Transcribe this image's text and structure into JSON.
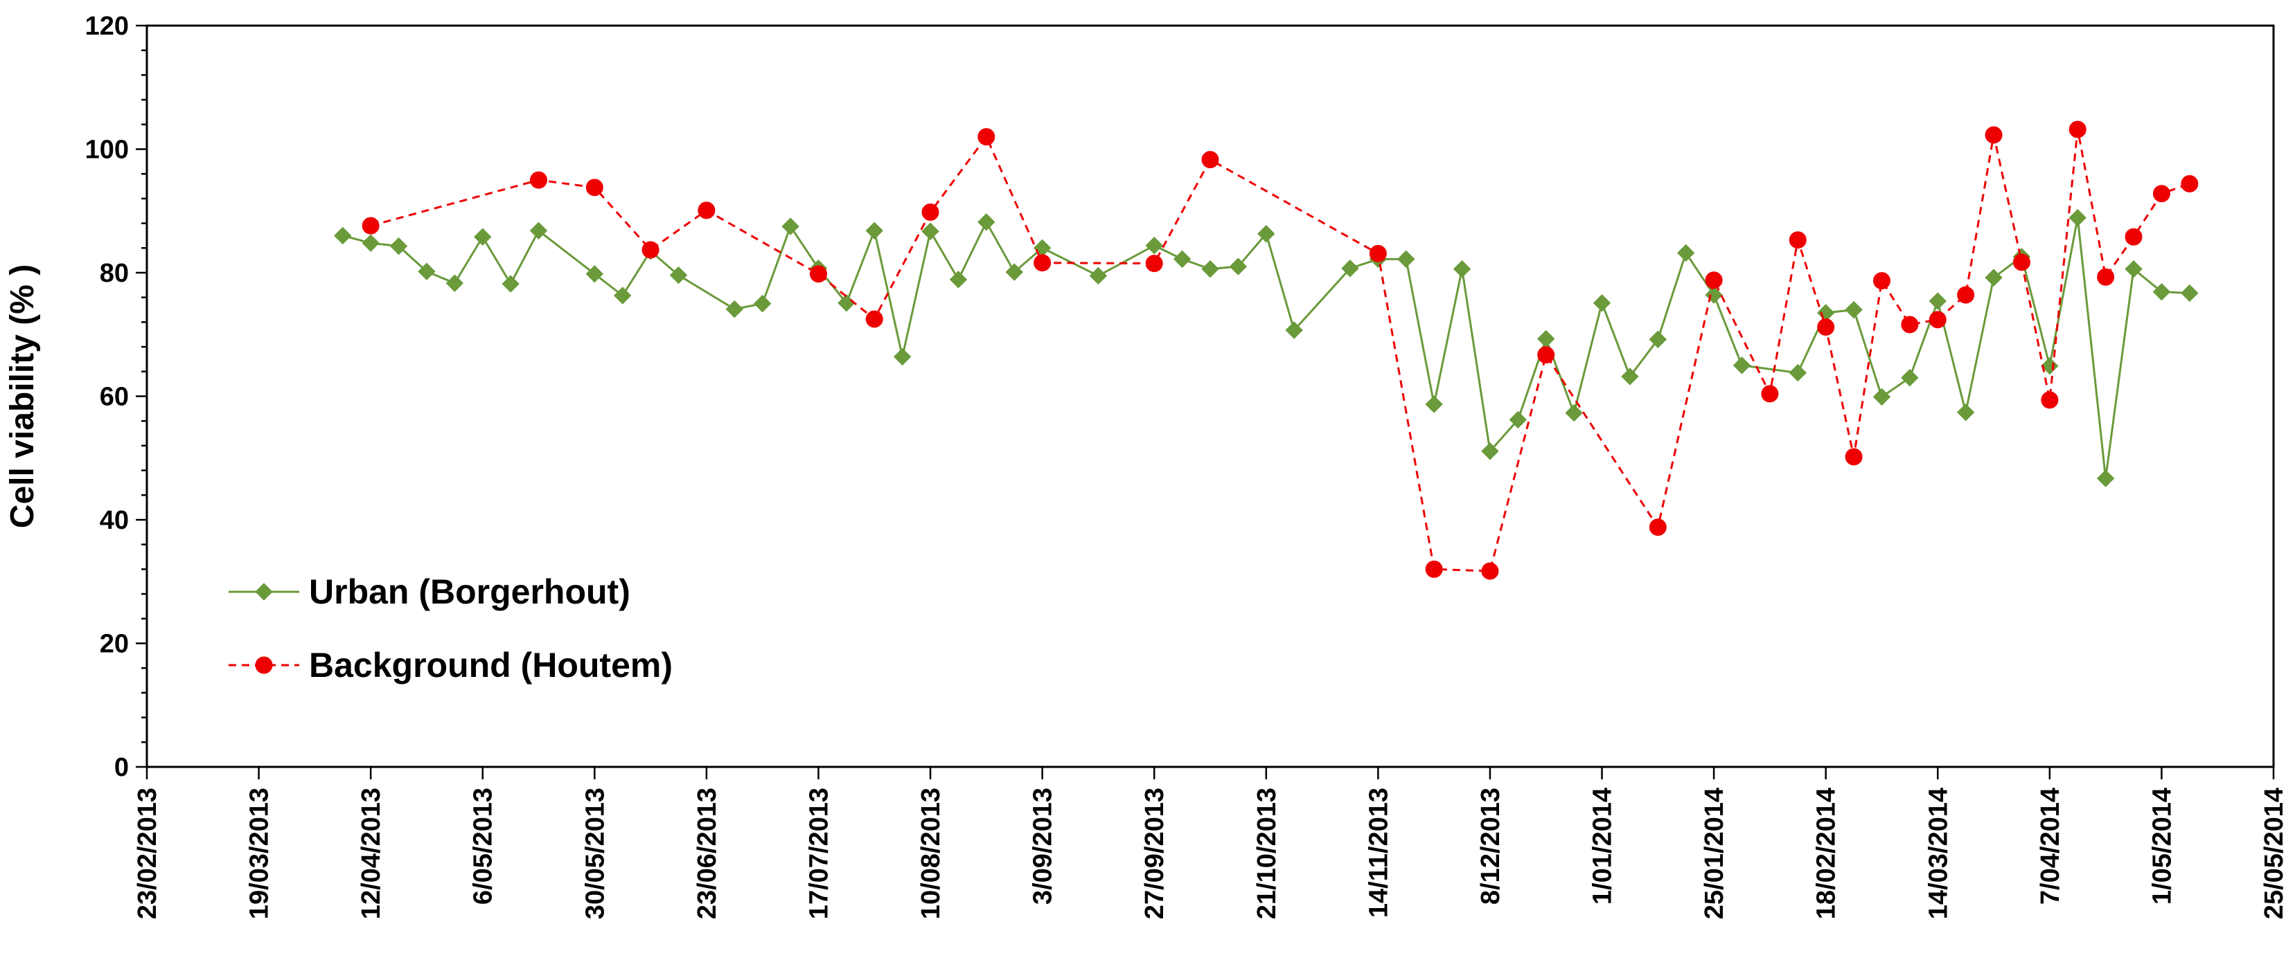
{
  "chart_data": {
    "type": "line",
    "title": "",
    "xlabel": "",
    "ylabel": "Cell viability (% )",
    "ylim": [
      0,
      120
    ],
    "y_ticks": [
      "0",
      "20",
      "40",
      "60",
      "80",
      "100",
      "120"
    ],
    "x_range": [
      "2013-02-23",
      "2014-05-25"
    ],
    "x_tick_dates": [
      "2013-02-23",
      "2013-03-19",
      "2013-04-12",
      "2013-05-06",
      "2013-05-30",
      "2013-06-23",
      "2013-07-17",
      "2013-08-10",
      "2013-09-03",
      "2013-09-27",
      "2013-10-21",
      "2013-11-14",
      "2013-12-08",
      "2014-01-01",
      "2014-01-25",
      "2014-02-18",
      "2014-03-14",
      "2014-04-07",
      "2014-05-01",
      "2014-05-25"
    ],
    "x_tick_labels": [
      "23/02/2013",
      "19/03/2013",
      "12/04/2013",
      "6/05/2013",
      "30/05/2013",
      "23/06/2013",
      "17/07/2013",
      "10/08/2013",
      "3/09/2013",
      "27/09/2013",
      "21/10/2013",
      "14/11/2013",
      "8/12/2013",
      "1/01/2014",
      "25/01/2014",
      "18/02/2014",
      "14/03/2014",
      "7/04/2014",
      "1/05/2014",
      "25/05/2014"
    ],
    "grid": false,
    "legend_position": "bottom-left",
    "series": [
      {
        "name": "Urban (Borgerhout)",
        "color": "#6a9a3a",
        "marker": "diamond",
        "line_style": "solid",
        "points": [
          {
            "x": "2013-04-06",
            "y": 86
          },
          {
            "x": "2013-04-12",
            "y": 84.8
          },
          {
            "x": "2013-04-18",
            "y": 84.3
          },
          {
            "x": "2013-04-24",
            "y": 80.2
          },
          {
            "x": "2013-04-30",
            "y": 78.3
          },
          {
            "x": "2013-05-06",
            "y": 85.8
          },
          {
            "x": "2013-05-12",
            "y": 78.2
          },
          {
            "x": "2013-05-18",
            "y": 86.8
          },
          {
            "x": "2013-05-30",
            "y": 79.8
          },
          {
            "x": "2013-06-05",
            "y": 76.3
          },
          {
            "x": "2013-06-11",
            "y": 83.5
          },
          {
            "x": "2013-06-17",
            "y": 79.6
          },
          {
            "x": "2013-06-29",
            "y": 74.1
          },
          {
            "x": "2013-07-05",
            "y": 75
          },
          {
            "x": "2013-07-11",
            "y": 87.5
          },
          {
            "x": "2013-07-17",
            "y": 80.7
          },
          {
            "x": "2013-07-23",
            "y": 75.1
          },
          {
            "x": "2013-07-29",
            "y": 86.8
          },
          {
            "x": "2013-08-04",
            "y": 66.4
          },
          {
            "x": "2013-08-10",
            "y": 86.7
          },
          {
            "x": "2013-08-16",
            "y": 78.9
          },
          {
            "x": "2013-08-22",
            "y": 88.2
          },
          {
            "x": "2013-08-28",
            "y": 80.1
          },
          {
            "x": "2013-09-03",
            "y": 84
          },
          {
            "x": "2013-09-15",
            "y": 79.5
          },
          {
            "x": "2013-09-27",
            "y": 84.4
          },
          {
            "x": "2013-10-03",
            "y": 82.2
          },
          {
            "x": "2013-10-09",
            "y": 80.6
          },
          {
            "x": "2013-10-15",
            "y": 81
          },
          {
            "x": "2013-10-21",
            "y": 86.3
          },
          {
            "x": "2013-10-27",
            "y": 70.7
          },
          {
            "x": "2013-11-08",
            "y": 80.7
          },
          {
            "x": "2013-11-14",
            "y": 82.2
          },
          {
            "x": "2013-11-20",
            "y": 82.2
          },
          {
            "x": "2013-11-26",
            "y": 58.7
          },
          {
            "x": "2013-12-02",
            "y": 80.6
          },
          {
            "x": "2013-12-08",
            "y": 51.1
          },
          {
            "x": "2013-12-14",
            "y": 56.2
          },
          {
            "x": "2013-12-20",
            "y": 69.3
          },
          {
            "x": "2013-12-26",
            "y": 57.3
          },
          {
            "x": "2014-01-01",
            "y": 75.1
          },
          {
            "x": "2014-01-07",
            "y": 63.2
          },
          {
            "x": "2014-01-13",
            "y": 69.2
          },
          {
            "x": "2014-01-19",
            "y": 83.2
          },
          {
            "x": "2014-01-25",
            "y": 76.4
          },
          {
            "x": "2014-01-31",
            "y": 65
          },
          {
            "x": "2014-02-12",
            "y": 63.8
          },
          {
            "x": "2014-02-18",
            "y": 73.5
          },
          {
            "x": "2014-02-24",
            "y": 74
          },
          {
            "x": "2014-03-02",
            "y": 59.9
          },
          {
            "x": "2014-03-08",
            "y": 63
          },
          {
            "x": "2014-03-14",
            "y": 75.4
          },
          {
            "x": "2014-03-20",
            "y": 57.4
          },
          {
            "x": "2014-03-26",
            "y": 79.2
          },
          {
            "x": "2014-04-01",
            "y": 82.6
          },
          {
            "x": "2014-04-07",
            "y": 64.9
          },
          {
            "x": "2014-04-13",
            "y": 88.9
          },
          {
            "x": "2014-04-19",
            "y": 46.7
          },
          {
            "x": "2014-04-25",
            "y": 80.6
          },
          {
            "x": "2014-05-01",
            "y": 76.9
          },
          {
            "x": "2014-05-07",
            "y": 76.7
          }
        ]
      },
      {
        "name": "Background (Houtem)",
        "color": "#ee0000",
        "marker": "circle",
        "line_style": "dashed",
        "points": [
          {
            "x": "2013-04-12",
            "y": 87.6
          },
          {
            "x": "2013-05-18",
            "y": 95
          },
          {
            "x": "2013-05-30",
            "y": 93.8
          },
          {
            "x": "2013-06-11",
            "y": 83.7
          },
          {
            "x": "2013-06-23",
            "y": 90.1
          },
          {
            "x": "2013-07-17",
            "y": 79.8
          },
          {
            "x": "2013-07-29",
            "y": 72.5
          },
          {
            "x": "2013-08-10",
            "y": 89.8
          },
          {
            "x": "2013-08-22",
            "y": 102
          },
          {
            "x": "2013-09-03",
            "y": 81.6
          },
          {
            "x": "2013-09-27",
            "y": 81.5
          },
          {
            "x": "2013-10-09",
            "y": 98.3
          },
          {
            "x": "2013-11-14",
            "y": 83.1
          },
          {
            "x": "2013-11-26",
            "y": 32
          },
          {
            "x": "2013-12-08",
            "y": 31.7
          },
          {
            "x": "2013-12-20",
            "y": 66.7
          },
          {
            "x": "2014-01-13",
            "y": 38.8
          },
          {
            "x": "2014-01-25",
            "y": 78.8
          },
          {
            "x": "2014-02-06",
            "y": 60.4
          },
          {
            "x": "2014-02-12",
            "y": 85.3
          },
          {
            "x": "2014-02-18",
            "y": 71.2
          },
          {
            "x": "2014-02-24",
            "y": 50.2
          },
          {
            "x": "2014-03-02",
            "y": 78.7
          },
          {
            "x": "2014-03-08",
            "y": 71.6
          },
          {
            "x": "2014-03-14",
            "y": 72.4
          },
          {
            "x": "2014-03-20",
            "y": 76.4
          },
          {
            "x": "2014-03-26",
            "y": 102.3
          },
          {
            "x": "2014-04-01",
            "y": 81.7
          },
          {
            "x": "2014-04-07",
            "y": 59.4
          },
          {
            "x": "2014-04-13",
            "y": 103.2
          },
          {
            "x": "2014-04-19",
            "y": 79.3
          },
          {
            "x": "2014-04-25",
            "y": 85.8
          },
          {
            "x": "2014-05-01",
            "y": 92.8
          },
          {
            "x": "2014-05-07",
            "y": 94.4
          }
        ]
      }
    ]
  }
}
